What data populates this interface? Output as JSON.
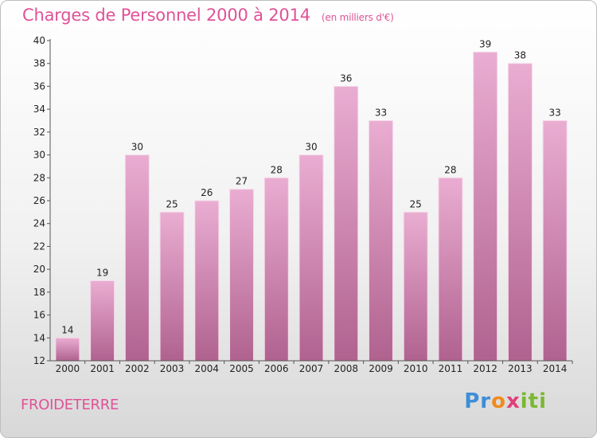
{
  "header": {
    "title": "Charges de Personnel 2000 à 2014",
    "subtitle": "(en milliers d'€)"
  },
  "footer": {
    "region": "FROIDETERRE",
    "logo": [
      "Pr",
      "o",
      "x",
      "iti"
    ]
  },
  "colors": {
    "accent": "#e05297",
    "bar_top": "#eaadd2",
    "bar_bottom": "#b0628f",
    "axis": "#555555",
    "grid_tick": "#555555"
  },
  "chart_data": {
    "type": "bar",
    "title": "Charges de Personnel 2000 à 2014",
    "subtitle": "(en milliers d'€)",
    "categories": [
      "2000",
      "2001",
      "2002",
      "2003",
      "2004",
      "2005",
      "2006",
      "2007",
      "2008",
      "2009",
      "2010",
      "2011",
      "2012",
      "2013",
      "2014"
    ],
    "values": [
      14,
      19,
      30,
      25,
      26,
      27,
      28,
      30,
      36,
      33,
      25,
      28,
      39,
      38,
      33
    ],
    "ylim": [
      12,
      40
    ],
    "yticks": [
      12,
      14,
      16,
      18,
      20,
      22,
      24,
      26,
      28,
      30,
      32,
      34,
      36,
      38,
      40
    ],
    "grid": false,
    "legend": "none"
  }
}
